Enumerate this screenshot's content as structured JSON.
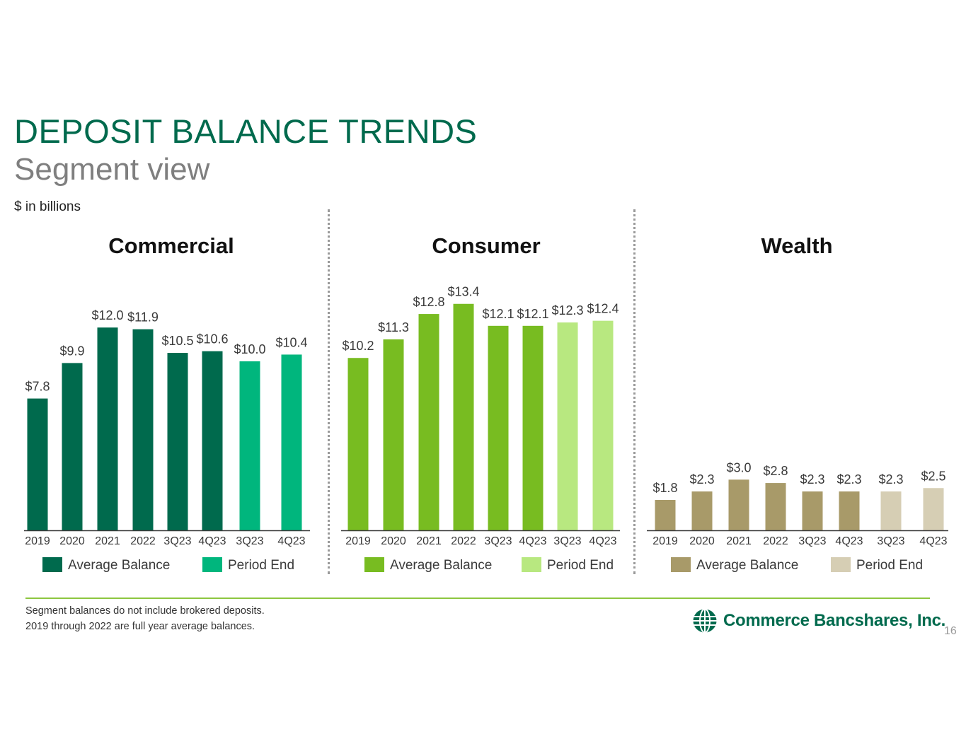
{
  "title": "DEPOSIT BALANCE TRENDS",
  "subtitle": "Segment view",
  "units": "$ in billions",
  "chart_data": [
    {
      "type": "bar",
      "title": "Commercial",
      "categories": [
        "2019",
        "2020",
        "2021",
        "2022",
        "3Q23",
        "4Q23",
        "3Q23",
        "4Q23"
      ],
      "series": [
        {
          "name": "Average Balance",
          "color": "#006a4d",
          "values": [
            7.8,
            9.9,
            12.0,
            11.9,
            10.5,
            10.6,
            null,
            null
          ]
        },
        {
          "name": "Period End",
          "color": "#00b67d",
          "values": [
            null,
            null,
            null,
            null,
            null,
            null,
            10.0,
            10.4
          ]
        }
      ],
      "labels": [
        "$7.8",
        "$9.9",
        "$12.0",
        "$11.9",
        "$10.5",
        "$10.6",
        "$10.0",
        "$10.4"
      ],
      "legend": [
        "Average Balance",
        "Period End"
      ],
      "legend_position": "bottom",
      "grid": false
    },
    {
      "type": "bar",
      "title": "Consumer",
      "categories": [
        "2019",
        "2020",
        "2021",
        "2022",
        "3Q23",
        "4Q23",
        "3Q23",
        "4Q23"
      ],
      "series": [
        {
          "name": "Average Balance",
          "color": "#78bc21",
          "values": [
            10.2,
            11.3,
            12.8,
            13.4,
            12.1,
            12.1,
            null,
            null
          ]
        },
        {
          "name": "Period End",
          "color": "#b8e880",
          "values": [
            null,
            null,
            null,
            null,
            null,
            null,
            12.3,
            12.4
          ]
        }
      ],
      "labels": [
        "$10.2",
        "$11.3",
        "$12.8",
        "$13.4",
        "$12.1",
        "$12.1",
        "$12.3",
        "$12.4"
      ],
      "legend": [
        "Average Balance",
        "Period End"
      ],
      "legend_position": "bottom",
      "grid": false
    },
    {
      "type": "bar",
      "title": "Wealth",
      "categories": [
        "2019",
        "2020",
        "2021",
        "2022",
        "3Q23",
        "4Q23",
        "3Q23",
        "4Q23"
      ],
      "series": [
        {
          "name": "Average Balance",
          "color": "#a89a69",
          "values": [
            1.8,
            2.3,
            3.0,
            2.8,
            2.3,
            2.3,
            null,
            null
          ]
        },
        {
          "name": "Period End",
          "color": "#d6ceb4",
          "values": [
            null,
            null,
            null,
            null,
            null,
            null,
            2.3,
            2.5
          ]
        }
      ],
      "labels": [
        "$1.8",
        "$2.3",
        "$3.0",
        "$2.8",
        "$2.3",
        "$2.3",
        "$2.3",
        "$2.5"
      ],
      "legend": [
        "Average Balance",
        "Period End"
      ],
      "legend_position": "bottom",
      "grid": false
    }
  ],
  "footnotes": [
    "Segment balances do not include brokered deposits.",
    "2019 through 2022 are full year average balances."
  ],
  "logo_text": "Commerce Bancshares, Inc.",
  "page_number": "16"
}
